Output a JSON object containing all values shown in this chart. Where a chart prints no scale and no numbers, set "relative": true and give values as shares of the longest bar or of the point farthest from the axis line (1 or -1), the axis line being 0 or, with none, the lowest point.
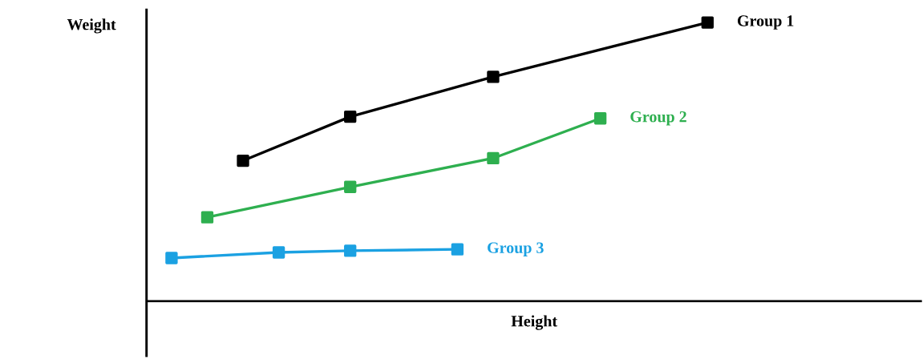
{
  "chart_data": {
    "type": "line",
    "relative": true,
    "xlabel": "Height",
    "ylabel": "Weight",
    "categories": [
      null,
      null,
      null,
      null,
      null,
      null,
      null,
      null,
      null,
      null,
      null,
      null,
      null,
      null,
      null,
      null
    ],
    "marker": "square",
    "line_style": "solid",
    "series": [
      {
        "name": "Group 1",
        "color": "#000000",
        "values": [
          null,
          null,
          0.504,
          null,
          null,
          0.662,
          null,
          null,
          null,
          0.805,
          null,
          null,
          null,
          null,
          null,
          1
        ]
      },
      {
        "name": "Group 2",
        "color": "#2eaf4f",
        "values": [
          null,
          0.301,
          null,
          null,
          null,
          0.41,
          null,
          null,
          null,
          0.513,
          null,
          null,
          0.656,
          null,
          null,
          null
        ]
      },
      {
        "name": "Group 3",
        "color": "#1ba1e2",
        "values": [
          0.155,
          null,
          null,
          0.175,
          null,
          0.181,
          null,
          null,
          0.186,
          null,
          null,
          null,
          null,
          null,
          null,
          null
        ]
      }
    ]
  }
}
